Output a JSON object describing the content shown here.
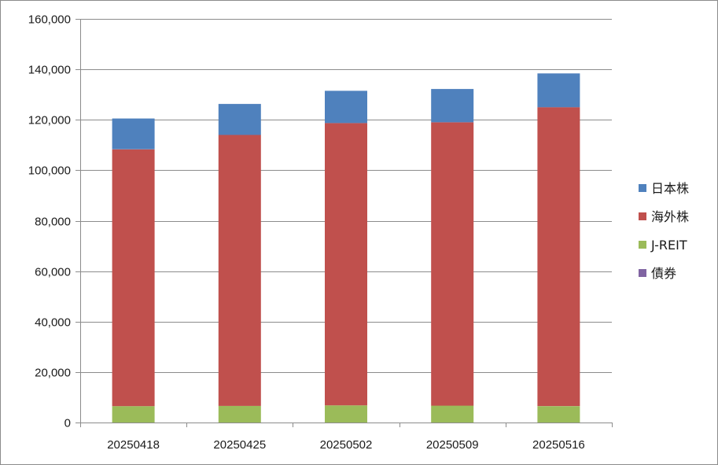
{
  "chart_data": {
    "type": "bar",
    "stacked": true,
    "categories": [
      "20250418",
      "20250425",
      "20250502",
      "20250509",
      "20250516"
    ],
    "series": [
      {
        "name": "債券",
        "color": "#8064a2",
        "values": [
          0,
          0,
          0,
          0,
          0
        ]
      },
      {
        "name": "J-REIT",
        "color": "#9bbb59",
        "values": [
          6500,
          6600,
          6800,
          6700,
          6500
        ]
      },
      {
        "name": "海外株",
        "color": "#c0504d",
        "values": [
          101800,
          107400,
          111900,
          112300,
          118500
        ]
      },
      {
        "name": "日本株",
        "color": "#4f81bd",
        "values": [
          12200,
          12300,
          12800,
          13200,
          13400
        ]
      }
    ],
    "y_ticks": [
      "0",
      "20,000",
      "40,000",
      "60,000",
      "80,000",
      "100,000",
      "120,000",
      "140,000",
      "160,000"
    ],
    "ylim": [
      0,
      160000
    ],
    "grid": true,
    "legend_position": "right",
    "legend_order": [
      "日本株",
      "海外株",
      "J-REIT",
      "債券"
    ],
    "title": "",
    "xlabel": "",
    "ylabel": ""
  }
}
